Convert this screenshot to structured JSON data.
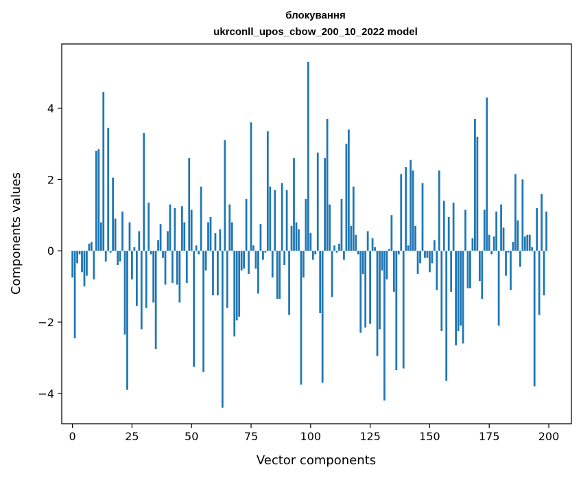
{
  "chart_data": {
    "type": "bar",
    "title": "блокування",
    "subtitle": "ukrconll_upos_cbow_200_10_2022 model",
    "xlabel": "Vector components",
    "ylabel": "Components values",
    "xlim": [
      -4.5,
      209.5
    ],
    "ylim": [
      -4.85,
      5.8
    ],
    "xticks": [
      0,
      25,
      50,
      75,
      100,
      125,
      150,
      175,
      200
    ],
    "yticks": [
      -4,
      -2,
      0,
      2,
      4
    ],
    "grid": false,
    "bar_color": "#1f77b4",
    "x": [
      0,
      1,
      2,
      3,
      4,
      5,
      6,
      7,
      8,
      9,
      10,
      11,
      12,
      13,
      14,
      15,
      16,
      17,
      18,
      19,
      20,
      21,
      22,
      23,
      24,
      25,
      26,
      27,
      28,
      29,
      30,
      31,
      32,
      33,
      34,
      35,
      36,
      37,
      38,
      39,
      40,
      41,
      42,
      43,
      44,
      45,
      46,
      47,
      48,
      49,
      50,
      51,
      52,
      53,
      54,
      55,
      56,
      57,
      58,
      59,
      60,
      61,
      62,
      63,
      64,
      65,
      66,
      67,
      68,
      69,
      70,
      71,
      72,
      73,
      74,
      75,
      76,
      77,
      78,
      79,
      80,
      81,
      82,
      83,
      84,
      85,
      86,
      87,
      88,
      89,
      90,
      91,
      92,
      93,
      94,
      95,
      96,
      97,
      98,
      99,
      100,
      101,
      102,
      103,
      104,
      105,
      106,
      107,
      108,
      109,
      110,
      111,
      112,
      113,
      114,
      115,
      116,
      117,
      118,
      119,
      120,
      121,
      122,
      123,
      124,
      125,
      126,
      127,
      128,
      129,
      130,
      131,
      132,
      133,
      134,
      135,
      136,
      137,
      138,
      139,
      140,
      141,
      142,
      143,
      144,
      145,
      146,
      147,
      148,
      149,
      150,
      151,
      152,
      153,
      154,
      155,
      156,
      157,
      158,
      159,
      160,
      161,
      162,
      163,
      164,
      165,
      166,
      167,
      168,
      169,
      170,
      171,
      172,
      173,
      174,
      175,
      176,
      177,
      178,
      179,
      180,
      181,
      182,
      183,
      184,
      185,
      186,
      187,
      188,
      189,
      190,
      191,
      192,
      193,
      194,
      195,
      196,
      197,
      198,
      199
    ],
    "values": [
      -0.75,
      -2.45,
      -0.35,
      -0.1,
      -0.6,
      -1.0,
      -0.7,
      0.2,
      0.25,
      -0.8,
      2.8,
      2.85,
      0.8,
      4.45,
      -0.3,
      3.45,
      -0.05,
      2.05,
      0.9,
      -0.4,
      -0.3,
      1.1,
      -2.35,
      -3.9,
      0.8,
      -0.8,
      0.1,
      -1.55,
      0.55,
      -2.2,
      3.3,
      -1.6,
      1.35,
      -0.1,
      -1.45,
      -2.75,
      0.3,
      0.75,
      -0.2,
      -0.95,
      0.55,
      1.3,
      -0.9,
      1.2,
      -0.95,
      -1.45,
      1.25,
      0.8,
      -0.9,
      2.6,
      1.15,
      -3.25,
      0.15,
      -0.1,
      1.8,
      -3.4,
      -0.55,
      0.8,
      0.95,
      -1.25,
      0.5,
      -1.25,
      0.6,
      -4.4,
      3.1,
      -1.6,
      1.3,
      0.8,
      -2.4,
      -1.95,
      -1.85,
      -0.55,
      -0.5,
      1.45,
      -0.65,
      3.6,
      0.15,
      -0.5,
      -1.2,
      0.75,
      -0.25,
      -0.05,
      3.35,
      1.8,
      -0.75,
      1.7,
      -1.35,
      -1.35,
      1.9,
      -0.4,
      1.7,
      -1.8,
      0.7,
      2.6,
      0.8,
      0.6,
      -3.75,
      -0.75,
      1.45,
      5.3,
      0.5,
      -0.25,
      -0.1,
      2.75,
      -1.75,
      -3.7,
      2.6,
      3.7,
      1.3,
      -1.3,
      0.15,
      -0.05,
      0.2,
      1.45,
      -0.25,
      3.0,
      3.4,
      0.7,
      1.8,
      0.45,
      -0.1,
      -2.3,
      -0.65,
      -2.15,
      0.55,
      -2.05,
      0.35,
      0.1,
      -2.95,
      -2.2,
      -0.55,
      -4.2,
      -0.8,
      0.05,
      1.0,
      -1.15,
      -3.35,
      -0.1,
      2.15,
      -3.3,
      2.35,
      0.15,
      2.55,
      2.25,
      0.7,
      -0.65,
      -0.35,
      1.9,
      -0.2,
      -0.2,
      -0.6,
      -0.35,
      0.3,
      -1.1,
      2.25,
      -2.25,
      1.4,
      -3.65,
      0.95,
      -1.15,
      1.35,
      -2.65,
      -2.25,
      -2.1,
      -2.6,
      1.15,
      -1.05,
      -1.05,
      0.35,
      3.7,
      3.2,
      -0.85,
      -1.35,
      1.15,
      4.3,
      0.45,
      -0.1,
      0.4,
      1.1,
      -2.1,
      1.3,
      0.65,
      -0.7,
      -0.05,
      -1.1,
      0.25,
      2.15,
      0.85,
      -0.45,
      2.0,
      0.4,
      0.45,
      0.45,
      0.1,
      -3.8,
      1.2,
      -1.8,
      1.6,
      -1.25,
      1.1
    ]
  }
}
